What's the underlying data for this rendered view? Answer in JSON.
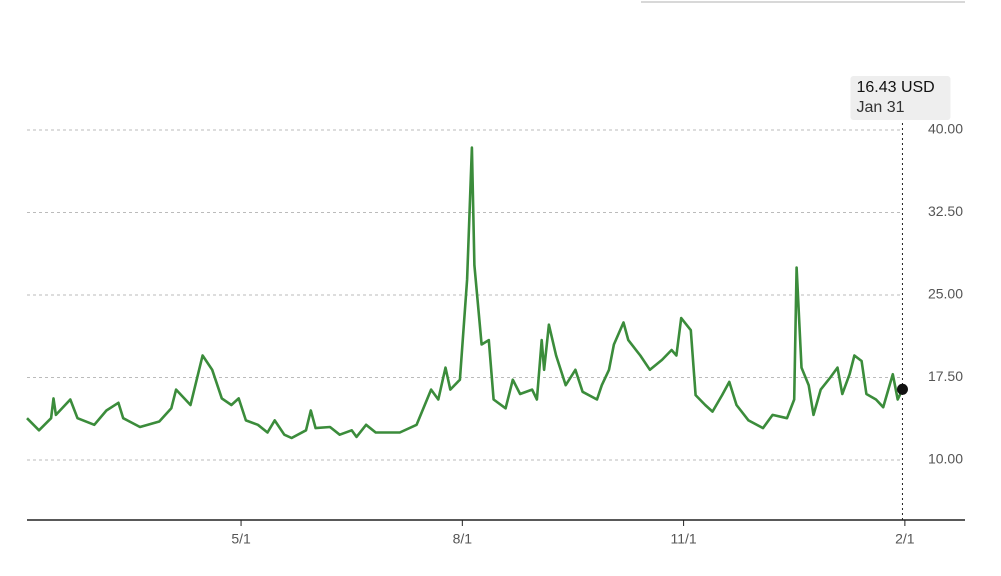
{
  "chart_data": {
    "type": "line",
    "x": [
      "2/1",
      "2/6",
      "2/11",
      "2/12",
      "2/13",
      "2/19",
      "2/22",
      "3/1",
      "3/6",
      "3/11",
      "3/13",
      "3/20",
      "3/28",
      "4/2",
      "4/4",
      "4/10",
      "4/15",
      "4/19",
      "4/23",
      "4/27",
      "4/30",
      "5/3",
      "5/8",
      "5/12",
      "5/15",
      "5/19",
      "5/22",
      "5/28",
      "5/30",
      "6/1",
      "6/7",
      "6/11",
      "6/16",
      "6/18",
      "6/22",
      "6/26",
      "7/6",
      "7/13",
      "7/19",
      "7/22",
      "7/25",
      "7/27",
      "7/31",
      "8/3",
      "8/5",
      "8/6",
      "8/9",
      "8/12",
      "8/14",
      "8/19",
      "8/22",
      "8/25",
      "8/30",
      "9/1",
      "9/3",
      "9/4",
      "9/6",
      "9/9",
      "9/13",
      "9/17",
      "9/20",
      "9/26",
      "9/28",
      "10/1",
      "10/3",
      "10/7",
      "10/9",
      "10/14",
      "10/18",
      "10/23",
      "10/27",
      "10/29",
      "10/31",
      "11/4",
      "11/6",
      "11/10",
      "11/13",
      "11/17",
      "11/20",
      "11/23",
      "11/28",
      "12/4",
      "12/8",
      "12/14",
      "12/17",
      "12/18",
      "12/20",
      "12/23",
      "12/25",
      "12/28",
      "1/1",
      "1/4",
      "1/6",
      "1/9",
      "1/11",
      "1/14",
      "1/16",
      "1/20",
      "1/23",
      "1/27",
      "1/29",
      "1/31"
    ],
    "series": [
      {
        "color": "#3b8c3b",
        "values": [
          13.8,
          12.7,
          13.8,
          15.6,
          14.1,
          15.5,
          13.8,
          13.2,
          14.5,
          15.2,
          13.8,
          13.0,
          13.5,
          14.7,
          16.4,
          15.0,
          19.5,
          18.2,
          15.6,
          15.0,
          15.6,
          13.6,
          13.2,
          12.5,
          13.6,
          12.3,
          12.0,
          12.7,
          14.5,
          12.9,
          13.0,
          12.3,
          12.7,
          12.1,
          13.2,
          12.5,
          12.5,
          13.2,
          16.4,
          15.5,
          18.4,
          16.4,
          17.3,
          26.4,
          38.4,
          27.7,
          20.5,
          20.9,
          15.5,
          14.7,
          17.3,
          16.0,
          16.4,
          15.5,
          20.9,
          18.2,
          22.3,
          19.5,
          16.8,
          18.2,
          16.2,
          15.5,
          16.8,
          18.2,
          20.5,
          22.5,
          20.9,
          19.5,
          18.2,
          19.1,
          20.0,
          19.5,
          22.9,
          21.8,
          15.9,
          15.0,
          14.4,
          15.9,
          17.1,
          15.0,
          13.6,
          12.9,
          14.1,
          13.8,
          15.5,
          27.5,
          18.4,
          16.8,
          14.1,
          16.4,
          17.5,
          18.4,
          16.0,
          17.8,
          19.5,
          19.0,
          16.0,
          15.5,
          14.8,
          17.8,
          15.5,
          16.43
        ]
      }
    ],
    "xlim": [
      "2/1",
      "2/26"
    ],
    "xticks": [
      "5/1",
      "8/1",
      "11/1",
      "2/1"
    ],
    "ylim": [
      4.55,
      40
    ],
    "yticks": [
      {
        "value": 10,
        "label": "10.00"
      },
      {
        "value": 17.5,
        "label": "17.50"
      },
      {
        "value": 25,
        "label": "25.00"
      },
      {
        "value": 32.5,
        "label": "32.50"
      },
      {
        "value": 40,
        "label": "40.00"
      }
    ],
    "grid": true,
    "annotation": {
      "value_label": "16.43 USD",
      "date_label": "Jan 31"
    }
  }
}
